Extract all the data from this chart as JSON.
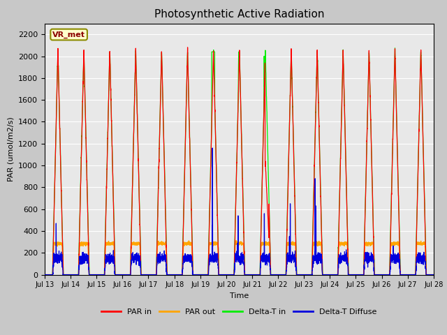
{
  "title": "Photosynthetic Active Radiation",
  "xlabel": "Time",
  "ylabel": "PAR (umol/m2/s)",
  "ylim": [
    0,
    2300
  ],
  "yticks": [
    0,
    200,
    400,
    600,
    800,
    1000,
    1200,
    1400,
    1600,
    1800,
    2000,
    2200
  ],
  "station_label": "VR_met",
  "xtick_labels": [
    "Jul 13",
    "Jul 14",
    "Jul 15",
    "Jul 16",
    "Jul 17",
    "Jul 18",
    "Jul 19",
    "Jul 20",
    "Jul 21",
    "Jul 22",
    "Jul 23",
    "Jul 24",
    "Jul 25",
    "Jul 26",
    "Jul 27",
    "Jul 28"
  ],
  "colors": {
    "PAR_in": "#ff0000",
    "PAR_out": "#ffa500",
    "Delta_T_in": "#00ee00",
    "Delta_T_Diffuse": "#0000dd"
  },
  "legend_labels": [
    "PAR in",
    "PAR out",
    "Delta-T in",
    "Delta-T Diffuse"
  ],
  "background_color": "#c8c8c8",
  "plot_bg_color": "#e8e8e8",
  "title_fontsize": 11
}
